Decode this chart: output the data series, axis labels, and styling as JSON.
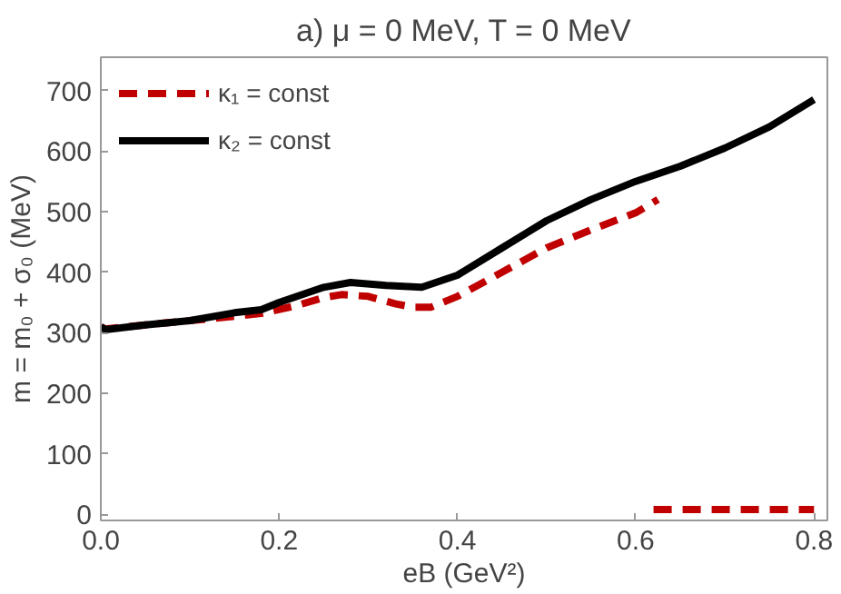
{
  "chart_data": {
    "type": "line",
    "title": "a) μ = 0 MeV, T = 0 MeV",
    "xlabel": "eB (GeV²)",
    "ylabel": "m = m₀ + σ₀ (MeV)",
    "xlim": [
      0,
      0.815
    ],
    "ylim": [
      -10,
      755
    ],
    "xticks": [
      {
        "value": 0,
        "label": "0.0"
      },
      0.2,
      0.4,
      0.6,
      0.8
    ],
    "yticks": [
      0,
      100,
      200,
      300,
      400,
      500,
      600,
      700
    ],
    "grid": false,
    "legend": "top left",
    "series": [
      {
        "name": "κ₁ = const",
        "color": "#c00000",
        "line_style": "dashed",
        "x": [
          0,
          0.005,
          0.05,
          0.1,
          0.15,
          0.18,
          0.22,
          0.25,
          0.27,
          0.3,
          0.33,
          0.35,
          0.37,
          0.4,
          0.45,
          0.5,
          0.55,
          0.6,
          0.625,
          null,
          0.62,
          0.8
        ],
        "values": [
          310,
          306,
          313,
          320,
          327,
          332,
          345,
          358,
          363,
          360,
          348,
          342,
          342,
          360,
          400,
          440,
          470,
          498,
          520,
          null,
          8,
          8
        ]
      },
      {
        "name": "κ₂ = const",
        "color": "#000000",
        "line_style": "solid",
        "x": [
          0,
          0.005,
          0.05,
          0.1,
          0.15,
          0.18,
          0.2,
          0.25,
          0.28,
          0.32,
          0.36,
          0.4,
          0.45,
          0.5,
          0.55,
          0.6,
          0.65,
          0.7,
          0.75,
          0.8
        ],
        "values": [
          310,
          305,
          313,
          320,
          333,
          338,
          350,
          375,
          383,
          378,
          375,
          395,
          440,
          485,
          520,
          550,
          575,
          605,
          640,
          685
        ]
      }
    ]
  }
}
